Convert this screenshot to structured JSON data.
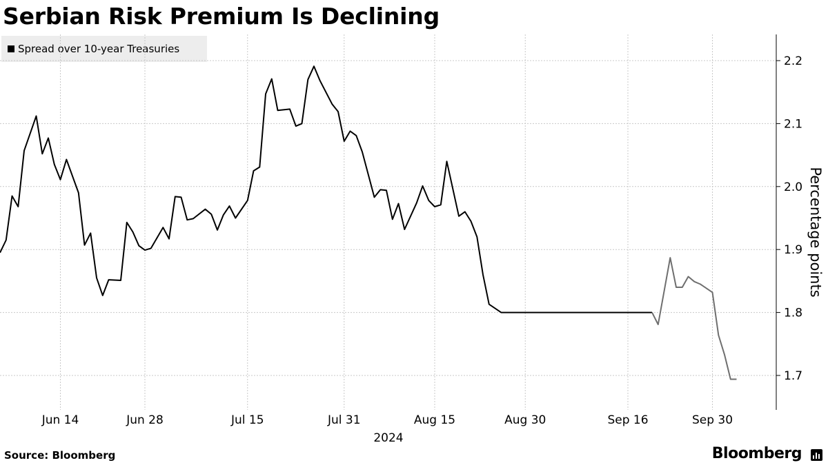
{
  "title": "Serbian Risk Premium Is Declining",
  "legend": {
    "label": "Spread over 10-year Treasuries",
    "color": "#000000"
  },
  "source": "Source: Bloomberg",
  "brand": "Bloomberg",
  "chart_data": {
    "type": "line",
    "title": "Serbian Risk Premium Is Declining",
    "ylabel": "Percentage points",
    "xlabel": "2024",
    "ylim": [
      1.6,
      2.25
    ],
    "yticks": [
      1.7,
      1.8,
      1.9,
      2.0,
      2.1,
      2.2
    ],
    "grid": true,
    "legend_position": "top-left",
    "x_range": [
      "2024-06-04",
      "2024-10-10"
    ],
    "xticks": [
      {
        "label": "Jun 14",
        "date": "2024-06-14"
      },
      {
        "label": "Jun 28",
        "date": "2024-06-28"
      },
      {
        "label": "Jul 15",
        "date": "2024-07-15"
      },
      {
        "label": "Jul 31",
        "date": "2024-07-31"
      },
      {
        "label": "Aug 15",
        "date": "2024-08-15"
      },
      {
        "label": "Aug 30",
        "date": "2024-08-30"
      },
      {
        "label": "Sep 16",
        "date": "2024-09-16"
      },
      {
        "label": "Sep 30",
        "date": "2024-09-30"
      }
    ],
    "series": [
      {
        "name": "Spread over 10-year Treasuries",
        "color": "#000000",
        "x": [
          "2024-06-04",
          "2024-06-05",
          "2024-06-06",
          "2024-06-07",
          "2024-06-08",
          "2024-06-10",
          "2024-06-11",
          "2024-06-12",
          "2024-06-13",
          "2024-06-14",
          "2024-06-15",
          "2024-06-17",
          "2024-06-18",
          "2024-06-19",
          "2024-06-20",
          "2024-06-21",
          "2024-06-22",
          "2024-06-24",
          "2024-06-25",
          "2024-06-26",
          "2024-06-27",
          "2024-06-28",
          "2024-06-29",
          "2024-07-01",
          "2024-07-02",
          "2024-07-03",
          "2024-07-04",
          "2024-07-05",
          "2024-07-06",
          "2024-07-08",
          "2024-07-09",
          "2024-07-10",
          "2024-07-11",
          "2024-07-12",
          "2024-07-13",
          "2024-07-15",
          "2024-07-16",
          "2024-07-17",
          "2024-07-18",
          "2024-07-19",
          "2024-07-20",
          "2024-07-22",
          "2024-07-23",
          "2024-07-24",
          "2024-07-25",
          "2024-07-26",
          "2024-07-27",
          "2024-07-29",
          "2024-07-30",
          "2024-07-31",
          "2024-08-01",
          "2024-08-02",
          "2024-08-03",
          "2024-08-05",
          "2024-08-06",
          "2024-08-07",
          "2024-08-08",
          "2024-08-09",
          "2024-08-10",
          "2024-08-12",
          "2024-08-13",
          "2024-08-14",
          "2024-08-15",
          "2024-08-16",
          "2024-08-17",
          "2024-08-19",
          "2024-08-20",
          "2024-08-21",
          "2024-08-22",
          "2024-08-23",
          "2024-08-24",
          "2024-08-26",
          "2024-08-27",
          "2024-08-28",
          "2024-08-29",
          "2024-08-30",
          "2024-08-31",
          "2024-09-02",
          "2024-09-03",
          "2024-09-04",
          "2024-09-05",
          "2024-09-06",
          "2024-09-07",
          "2024-09-09",
          "2024-09-10",
          "2024-09-11",
          "2024-09-12",
          "2024-09-13",
          "2024-09-14",
          "2024-09-16",
          "2024-09-17",
          "2024-09-18",
          "2024-09-19",
          "2024-09-20"
        ],
        "values": [
          1.895,
          1.915,
          1.985,
          1.968,
          2.057,
          2.112,
          2.052,
          2.077,
          2.035,
          2.011,
          2.043,
          1.99,
          1.907,
          1.926,
          1.855,
          1.827,
          1.852,
          1.851,
          1.943,
          1.928,
          1.906,
          1.899,
          1.902,
          1.935,
          1.917,
          1.984,
          1.983,
          1.947,
          1.949,
          1.964,
          1.956,
          1.931,
          1.955,
          1.969,
          1.95,
          1.978,
          2.025,
          2.031,
          2.147,
          2.171,
          2.121,
          2.123,
          2.096,
          2.1,
          2.17,
          2.191,
          2.168,
          2.131,
          2.119,
          2.072,
          2.088,
          2.081,
          2.055,
          1.983,
          1.995,
          1.994,
          1.948,
          1.973,
          1.932,
          1.974,
          2.001,
          1.978,
          1.968,
          1.971,
          2.04,
          1.953,
          1.96,
          1.945,
          1.92,
          1.86,
          1.813,
          1.8,
          1.8,
          1.8,
          1.8,
          1.8,
          1.8,
          1.8,
          1.8,
          1.8,
          1.8,
          1.8,
          1.8,
          1.8,
          1.8,
          1.8,
          1.8,
          1.8,
          1.8,
          1.8,
          1.8,
          1.8,
          1.8,
          1.8
        ]
      },
      {
        "color": "#6e6e6e",
        "x": [
          "2024-09-20",
          "2024-09-21",
          "2024-09-23",
          "2024-09-24",
          "2024-09-25",
          "2024-09-26",
          "2024-09-27",
          "2024-09-28",
          "2024-09-30",
          "2024-10-01",
          "2024-10-02",
          "2024-10-03",
          "2024-10-04"
        ],
        "values": [
          1.8,
          1.781,
          1.887,
          1.84,
          1.84,
          1.857,
          1.849,
          1.845,
          1.832,
          1.764,
          1.733,
          1.694,
          1.694
        ]
      }
    ]
  }
}
